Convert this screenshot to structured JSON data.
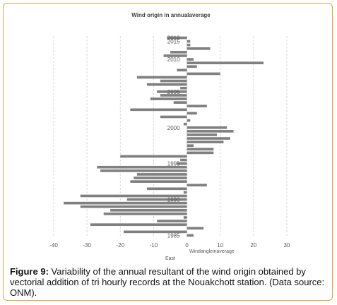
{
  "caption": {
    "label": "Figure 9:",
    "text": "Variability of the annual resultant of the wind origin obtained by vectorial addition of tri hourly records at the Nouakchott station. (Data source: ONM)."
  },
  "chart_data": {
    "type": "bar",
    "orientation": "horizontal",
    "title": "Wind origin in annualaverage",
    "xlabel": "Windangleinaverage",
    "xlabel_left": "East",
    "xlim": [
      -40,
      30
    ],
    "xticks": [
      -40,
      -30,
      -20,
      -10,
      0,
      10,
      20,
      30
    ],
    "grid": true,
    "year_labels": [
      {
        "label": "2016",
        "index": 0
      },
      {
        "label": "2015",
        "index": 1
      },
      {
        "label": "2010",
        "index": 6
      },
      {
        "label": "2005",
        "index": 15
      },
      {
        "label": "2000",
        "index": 25
      },
      {
        "label": "1995",
        "index": 35
      },
      {
        "label": "1990",
        "index": 45
      },
      {
        "label": "1985",
        "index": 55
      }
    ],
    "values": [
      -6,
      1,
      1,
      7,
      -5,
      -7,
      2,
      23,
      3,
      -3,
      10,
      -15,
      -8,
      -12,
      -2,
      -9,
      -8,
      -11,
      -4,
      6,
      -17,
      3,
      -8,
      1,
      -1,
      12,
      14,
      9,
      13,
      11,
      2,
      8,
      8,
      -20,
      -2,
      -3,
      -27,
      -26,
      -15,
      -16,
      -17,
      6,
      -12,
      -1,
      -32,
      -18,
      -37,
      -32,
      -23,
      -25,
      -1,
      -9,
      -29,
      5,
      -19,
      2
    ]
  }
}
